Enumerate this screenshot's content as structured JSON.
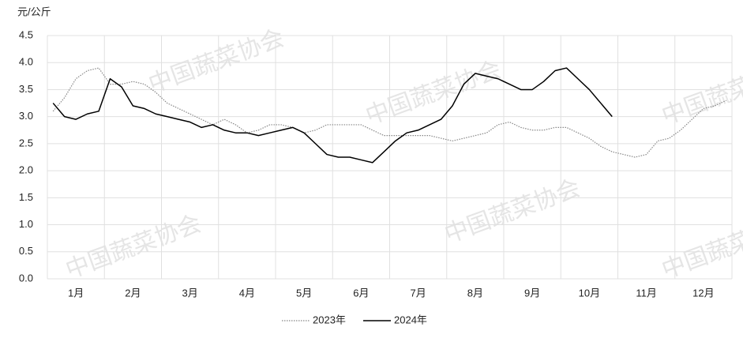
{
  "chart_data": {
    "type": "line",
    "y_axis_label": "元/公斤",
    "watermark": "中国蔬菜协会",
    "categories": [
      null,
      null,
      "1月",
      null,
      null,
      null,
      null,
      "2月",
      null,
      null,
      null,
      null,
      "3月",
      null,
      null,
      null,
      null,
      "4月",
      null,
      null,
      null,
      null,
      "5月",
      null,
      null,
      null,
      null,
      "6月",
      null,
      null,
      null,
      null,
      "7月",
      null,
      null,
      null,
      null,
      "8月",
      null,
      null,
      null,
      null,
      "9月",
      null,
      null,
      null,
      null,
      "10月",
      null,
      null,
      null,
      null,
      "11月",
      null,
      null,
      null,
      null,
      "12月",
      null,
      null
    ],
    "series": [
      {
        "name": "2023年",
        "color": "#888888",
        "dashed": true,
        "values": [
          3.1,
          3.35,
          3.7,
          3.85,
          3.9,
          3.6,
          3.6,
          3.65,
          3.6,
          3.45,
          3.25,
          3.15,
          3.05,
          2.95,
          2.85,
          2.95,
          2.85,
          2.7,
          2.75,
          2.85,
          2.85,
          2.8,
          2.7,
          2.75,
          2.85,
          2.85,
          2.85,
          2.85,
          2.75,
          2.65,
          2.65,
          2.65,
          2.65,
          2.65,
          2.6,
          2.55,
          2.6,
          2.65,
          2.7,
          2.85,
          2.9,
          2.8,
          2.75,
          2.75,
          2.8,
          2.8,
          2.7,
          2.6,
          2.45,
          2.35,
          2.3,
          2.25,
          2.3,
          2.55,
          2.6,
          2.75,
          2.95,
          3.15,
          3.2,
          3.3
        ]
      },
      {
        "name": "2024年",
        "color": "#000000",
        "dashed": false,
        "values": [
          3.25,
          3.0,
          2.95,
          3.05,
          3.1,
          3.7,
          3.55,
          3.2,
          3.15,
          3.05,
          3.0,
          2.95,
          2.9,
          2.8,
          2.85,
          2.75,
          2.7,
          2.7,
          2.65,
          2.7,
          2.75,
          2.8,
          2.7,
          2.5,
          2.3,
          2.25,
          2.25,
          2.2,
          2.15,
          2.35,
          2.55,
          2.7,
          2.75,
          2.85,
          2.95,
          3.2,
          3.6,
          3.8,
          3.75,
          3.7,
          3.6,
          3.5,
          3.5,
          3.65,
          3.85,
          3.9,
          3.7,
          3.5,
          3.25,
          3.0,
          null,
          null,
          null,
          null,
          null,
          null,
          null,
          null,
          null,
          null
        ]
      }
    ],
    "ylim": [
      0,
      4.5
    ],
    "yticks": [
      {
        "value": 0,
        "label": "0.0"
      },
      0.5,
      {
        "value": 1,
        "label": "1.0"
      },
      1.5,
      {
        "value": 2,
        "label": "2.0"
      },
      2.5,
      {
        "value": 3,
        "label": "3.0"
      },
      3.5,
      {
        "value": 4,
        "label": "4.0"
      },
      4.5
    ],
    "grid": true,
    "legend": "bottom"
  }
}
